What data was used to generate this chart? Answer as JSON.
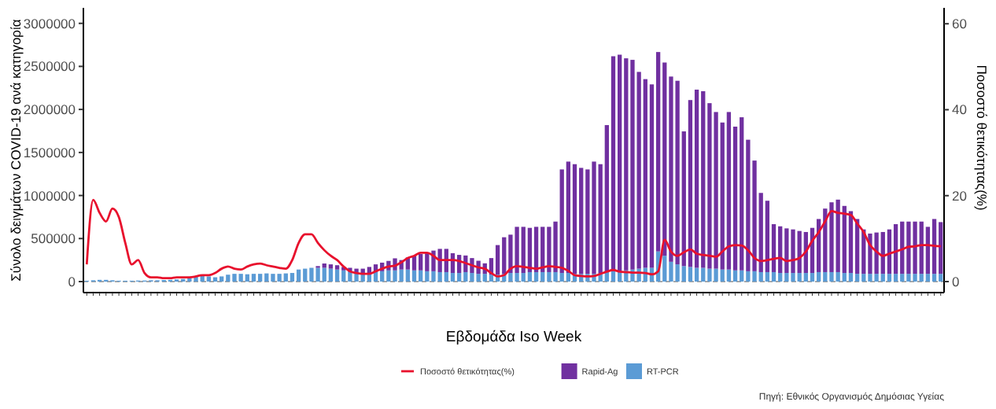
{
  "chart_data": {
    "type": "bar",
    "stacked": true,
    "xlabel": "Εβδομάδα Iso Week",
    "ylabel": "Σύνολο δειγμάτων COVID-19 ανά κατηγορία",
    "y2label": "Ποσοστό θετικότητας(%)",
    "categories": [
      null,
      null,
      null,
      null,
      null,
      null,
      null,
      null,
      null,
      null,
      null,
      null,
      null,
      null,
      null,
      null,
      null,
      null,
      null,
      null,
      null,
      null,
      null,
      null,
      null,
      null,
      null,
      null,
      null,
      null,
      null,
      null,
      null,
      null,
      null,
      null,
      null,
      null,
      null,
      null,
      null,
      null,
      null,
      null,
      null,
      null,
      null,
      null,
      null,
      null,
      null,
      null,
      null,
      null,
      null,
      null,
      null,
      null,
      null,
      null,
      null,
      null,
      null,
      null,
      null,
      null,
      null,
      null,
      null,
      null,
      null,
      null,
      null,
      null,
      null,
      null,
      null,
      null,
      null,
      null,
      null,
      null,
      null,
      null,
      null,
      null,
      null,
      null,
      null,
      null,
      null,
      null,
      null,
      null,
      null,
      null,
      null,
      null,
      null,
      null,
      null,
      null,
      null,
      null,
      null,
      null,
      null,
      null,
      null,
      null,
      null,
      null,
      null,
      null,
      null,
      null,
      null,
      null,
      null,
      null,
      null,
      null,
      null,
      null,
      null,
      null,
      null,
      null,
      null,
      null,
      null,
      null,
      null,
      null
    ],
    "ylim": [
      -128000,
      3180000
    ],
    "yticks": [
      0,
      500000,
      1000000,
      1500000,
      2000000,
      2500000,
      3000000
    ],
    "y2lim": [
      -2.56,
      63.7
    ],
    "y2ticks": [
      0,
      20,
      40,
      60
    ],
    "legend": "bottom",
    "ref_lines": [
      {
        "axis": "y",
        "value": 0,
        "color": "#8c8c8c",
        "line_style": "dashed"
      }
    ],
    "annotations": [
      "Πηγή: Εθνικός Οργανισμός Δημόσιας Υγείας"
    ],
    "series": [
      {
        "name": "RT-PCR",
        "color": "#5b9bd5",
        "values": [
          10000,
          15000,
          20000,
          20000,
          15000,
          10000,
          10000,
          10000,
          12000,
          12000,
          15000,
          15000,
          18000,
          20000,
          25000,
          30000,
          40000,
          60000,
          70000,
          60000,
          50000,
          60000,
          80000,
          90000,
          90000,
          85000,
          90000,
          90000,
          95000,
          90000,
          90000,
          95000,
          100000,
          140000,
          150000,
          160000,
          160000,
          160000,
          150000,
          140000,
          130000,
          120000,
          110000,
          100000,
          100000,
          110000,
          120000,
          130000,
          130000,
          140000,
          140000,
          130000,
          130000,
          120000,
          120000,
          110000,
          110000,
          100000,
          100000,
          110000,
          100000,
          90000,
          90000,
          80000,
          80000,
          90000,
          100000,
          100000,
          100000,
          110000,
          110000,
          110000,
          110000,
          110000,
          100000,
          100000,
          90000,
          90000,
          90000,
          90000,
          100000,
          110000,
          120000,
          120000,
          130000,
          140000,
          150000,
          160000,
          160000,
          350000,
          300000,
          230000,
          200000,
          180000,
          170000,
          160000,
          160000,
          150000,
          150000,
          140000,
          140000,
          130000,
          130000,
          120000,
          120000,
          110000,
          110000,
          110000,
          100000,
          100000,
          100000,
          100000,
          100000,
          100000,
          110000,
          110000,
          110000,
          110000,
          100000,
          100000,
          90000,
          90000,
          90000,
          90000,
          90000,
          90000,
          90000,
          90000,
          90000,
          90000,
          90000,
          90000,
          90000,
          90000
        ]
      },
      {
        "name": "Rapid-Ag",
        "color": "#7030a0",
        "values": [
          null,
          null,
          null,
          null,
          null,
          null,
          null,
          null,
          null,
          null,
          null,
          null,
          null,
          null,
          null,
          null,
          null,
          null,
          null,
          null,
          null,
          null,
          null,
          null,
          null,
          null,
          null,
          null,
          null,
          null,
          null,
          null,
          null,
          null,
          null,
          null,
          20000,
          50000,
          50000,
          50000,
          40000,
          40000,
          40000,
          50000,
          70000,
          90000,
          100000,
          110000,
          140000,
          110000,
          140000,
          170000,
          190000,
          210000,
          240000,
          270000,
          270000,
          230000,
          210000,
          193000,
          173000,
          152000,
          122000,
          193000,
          344000,
          425000,
          445000,
          536000,
          536000,
          514000,
          526000,
          526000,
          526000,
          587000,
          1203000,
          1294000,
          1274000,
          1231000,
          1213000,
          1304000,
          1264000,
          1708000,
          2498000,
          2516000,
          2464000,
          2436000,
          2286000,
          2192000,
          2131000,
          2317000,
          2245000,
          2152000,
          2133000,
          1565000,
          1939000,
          2070000,
          2052000,
          1923000,
          1820000,
          1708000,
          1830000,
          1670000,
          1779000,
          1528000,
          1286000,
          920000,
          829000,
          557000,
          542000,
          518000,
          506000,
          488000,
          476000,
          524000,
          617000,
          738000,
          811000,
          842000,
          779000,
          718000,
          637000,
          516000,
          468000,
          480000,
          486000,
          516000,
          577000,
          607000,
          607000,
          607000,
          607000,
          546000,
          637000,
          601000
        ]
      },
      {
        "name": "Ποσοστό θετικότητας(%)",
        "type": "line",
        "axis": "y2",
        "color": "#e8112d",
        "values": [
          4,
          19,
          16,
          14,
          17,
          15,
          9,
          4,
          5,
          2,
          1,
          1,
          0.8,
          0.8,
          1,
          1,
          1,
          1.2,
          1.5,
          1.5,
          2,
          3,
          3.5,
          3,
          2.8,
          3.5,
          4,
          4.2,
          3.8,
          3.5,
          3.2,
          3,
          5,
          9,
          11,
          11,
          9,
          7.3,
          6,
          5,
          3.5,
          2.4,
          2,
          1.8,
          1.8,
          2.4,
          3,
          3.5,
          3.7,
          4.5,
          5.5,
          6,
          6.7,
          6.7,
          6,
          5,
          5,
          5,
          4.8,
          4.3,
          3.8,
          3.3,
          3,
          2,
          1.2,
          1.5,
          3,
          3.6,
          3.4,
          3.2,
          3,
          3.3,
          3.6,
          3.4,
          3.2,
          2.5,
          1.5,
          1.3,
          1.2,
          1.3,
          1.8,
          2.3,
          2.7,
          2.3,
          2.2,
          2.1,
          2.1,
          2,
          1.7,
          2.4,
          9.7,
          7,
          6,
          6.8,
          7.5,
          6.5,
          6.2,
          6,
          5.8,
          7,
          8.2,
          8.5,
          8.4,
          7.3,
          5.5,
          4.8,
          5,
          5.3,
          5.5,
          4.8,
          5,
          5.5,
          7,
          9.5,
          11.5,
          14,
          16.4,
          16,
          15.8,
          15.5,
          13.5,
          11.5,
          8.5,
          7,
          6,
          6.5,
          7,
          7.5,
          8.1,
          8.2,
          8.5,
          8.5,
          8.3,
          8.2
        ]
      }
    ]
  }
}
